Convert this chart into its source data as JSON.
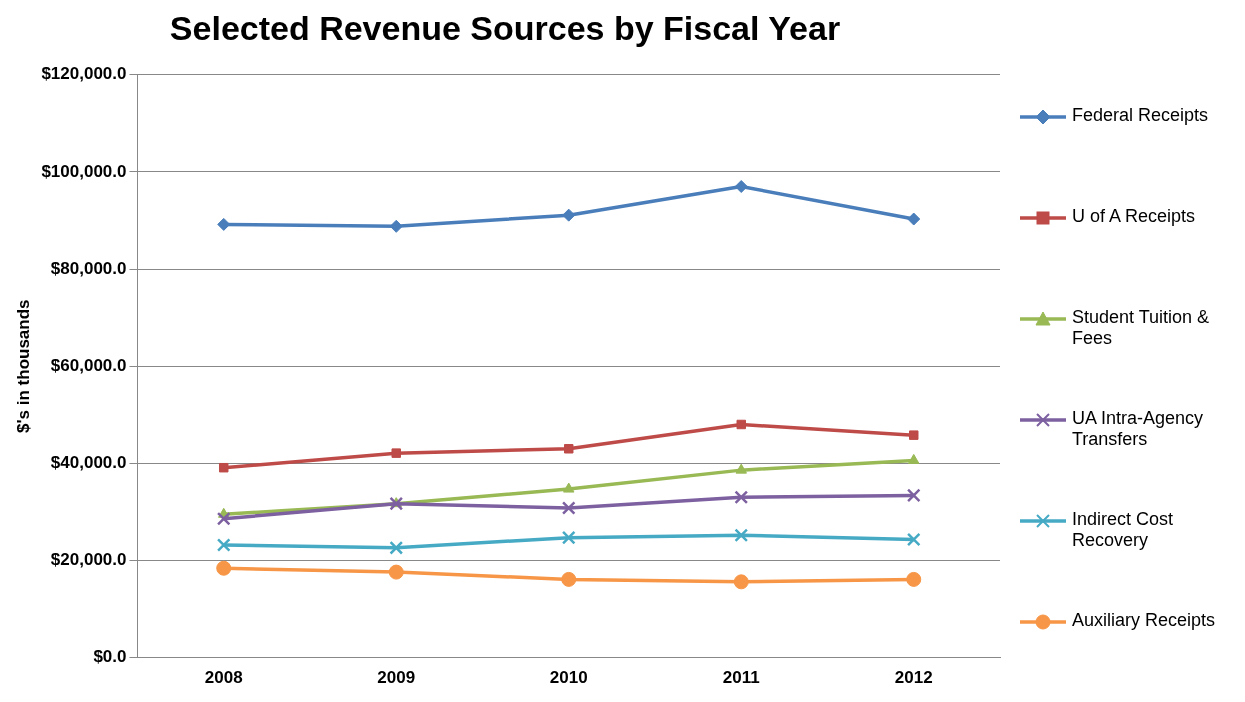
{
  "chart_data": {
    "type": "line",
    "title": "Selected Revenue Sources by Fiscal Year",
    "ylabel": "$'s in thousands",
    "categories": [
      "2008",
      "2009",
      "2010",
      "2011",
      "2012"
    ],
    "ylim": [
      0,
      120000
    ],
    "yticks": [
      {
        "value": 0,
        "label": "$0.0"
      },
      {
        "value": 20000,
        "label": "$20,000.0"
      },
      {
        "value": 40000,
        "label": "$40,000.0"
      },
      {
        "value": 60000,
        "label": "$60,000.0"
      },
      {
        "value": 80000,
        "label": "$80,000.0"
      },
      {
        "value": 100000,
        "label": "$100,000.0"
      },
      {
        "value": 120000,
        "label": "$120,000.0"
      }
    ],
    "grid": "y",
    "legend": "right",
    "line_style": "solid",
    "series": [
      {
        "name": "Federal Receipts",
        "color": "#4a7ebb",
        "marker": "diamond",
        "values": [
          89200,
          88800,
          91100,
          97000,
          90300
        ]
      },
      {
        "name": "U of A Receipts",
        "color": "#be4b48",
        "marker": "square",
        "values": [
          39100,
          42100,
          43000,
          48000,
          45800
        ]
      },
      {
        "name": "Student Tuition & Fees",
        "color": "#98b954",
        "marker": "triangle",
        "values": [
          29500,
          31700,
          34700,
          38600,
          40600
        ]
      },
      {
        "name": "UA Intra-Agency Transfers",
        "color": "#7d60a0",
        "marker": "cross",
        "values": [
          28600,
          31700,
          30800,
          33000,
          33400
        ]
      },
      {
        "name": "Indirect Cost Recovery",
        "color": "#46aac5",
        "marker": "cross",
        "values": [
          23200,
          22600,
          24700,
          25200,
          24300
        ]
      },
      {
        "name": "Auxiliary Receipts",
        "color": "#f79646",
        "marker": "circle",
        "values": [
          18400,
          17600,
          16100,
          15600,
          16100
        ]
      }
    ]
  }
}
